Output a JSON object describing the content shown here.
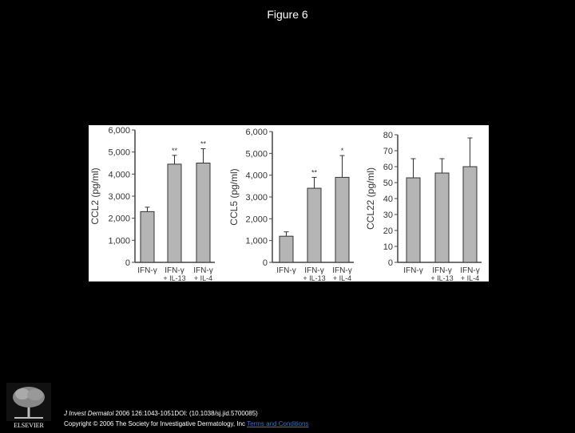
{
  "page": {
    "title": "Figure 6"
  },
  "chart_data": [
    {
      "type": "bar",
      "ylabel": "CCL2 (pg/ml)",
      "categories": [
        [
          "IFN-γ"
        ],
        [
          "IFN-γ",
          "+ IL-13"
        ],
        [
          "IFN-γ",
          "+ IL-4"
        ]
      ],
      "values": [
        2300,
        4450,
        4500
      ],
      "errors": [
        200,
        400,
        650
      ],
      "significance": [
        "",
        "**",
        "**"
      ],
      "ylim": [
        0,
        6000
      ],
      "ytick_labels": [
        "0",
        "1,000",
        "2,000",
        "3,000",
        "4,000",
        "5,000",
        "6,000"
      ]
    },
    {
      "type": "bar",
      "ylabel": "CCL5 (pg/ml)",
      "categories": [
        [
          "IFN-γ"
        ],
        [
          "IFN-γ",
          "+ IL-13"
        ],
        [
          "IFN-γ",
          "+ IL-4"
        ]
      ],
      "values": [
        1200,
        3400,
        3900
      ],
      "errors": [
        200,
        500,
        1000
      ],
      "significance": [
        "",
        "**",
        "*"
      ],
      "ylim": [
        0,
        6000
      ],
      "ytick_labels": [
        "0",
        "1,000",
        "2,000",
        "3,000",
        "4,000",
        "5,000",
        "6,000"
      ]
    },
    {
      "type": "bar",
      "ylabel": "CCL22 (pg/ml)",
      "categories": [
        [
          "IFN-γ"
        ],
        [
          "IFN-γ",
          "+ IL-13"
        ],
        [
          "IFN-γ",
          "+ IL-4"
        ]
      ],
      "values": [
        53,
        56,
        60
      ],
      "errors": [
        12,
        9,
        18
      ],
      "significance": [
        "",
        "",
        ""
      ],
      "ylim": [
        0,
        80
      ],
      "ytick_labels": [
        "0",
        "10",
        "20",
        "30",
        "40",
        "50",
        "60",
        "70",
        "80"
      ]
    }
  ],
  "footer": {
    "journal": "J Invest Dermatol",
    "citation_rest": " 2006 126:1043-1051DOI: (10.1038/sj.jid.5700085)",
    "copyright": "Copyright © 2006 The Society for Investigative Dermatology, Inc",
    "link_text": "Terms and Conditions",
    "publisher_text": "ELSEVIER"
  }
}
